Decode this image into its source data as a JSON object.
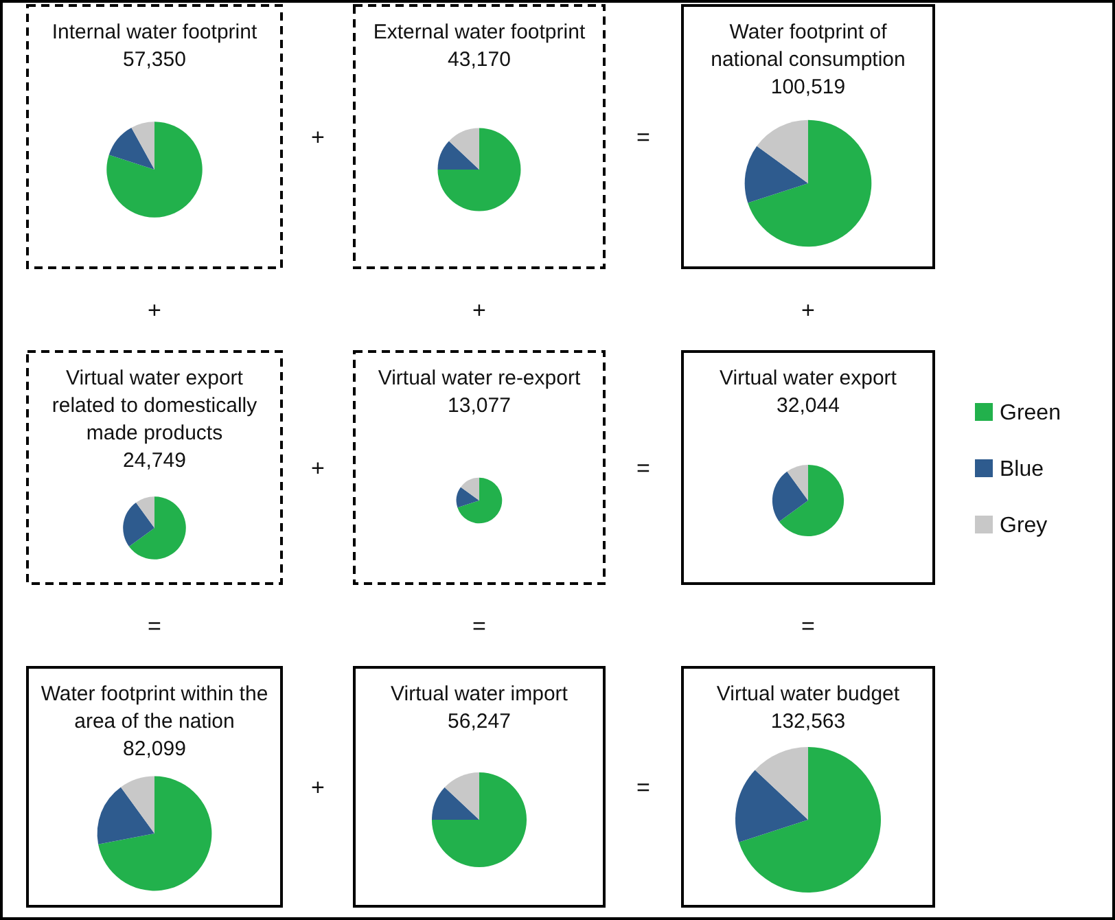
{
  "chart_data": [
    {
      "type": "pie",
      "title": "Internal water footprint",
      "subtitle": "57,350",
      "values": [
        80,
        12,
        8
      ],
      "colors": [
        "#22b14c",
        "#2e5b8e",
        "#c8c8c8"
      ]
    },
    {
      "type": "pie",
      "title": "External water footprint",
      "subtitle": "43,170",
      "values": [
        75,
        12,
        13
      ],
      "colors": [
        "#22b14c",
        "#2e5b8e",
        "#c8c8c8"
      ]
    },
    {
      "type": "pie",
      "title": "Water footprint of national consumption",
      "subtitle": "100,519",
      "values": [
        70,
        15,
        15
      ],
      "colors": [
        "#22b14c",
        "#2e5b8e",
        "#c8c8c8"
      ]
    },
    {
      "type": "pie",
      "title": "Virtual water export related to domestically made products",
      "subtitle": "24,749",
      "values": [
        65,
        25,
        10
      ],
      "colors": [
        "#22b14c",
        "#2e5b8e",
        "#c8c8c8"
      ]
    },
    {
      "type": "pie",
      "title": "Virtual water re-export",
      "subtitle": "13,077",
      "values": [
        70,
        15,
        15
      ],
      "colors": [
        "#22b14c",
        "#2e5b8e",
        "#c8c8c8"
      ]
    },
    {
      "type": "pie",
      "title": "Virtual water export",
      "subtitle": "32,044",
      "categories": [
        "Green",
        "Blue",
        "Grey"
      ],
      "values": [
        65,
        25,
        10
      ],
      "colors": [
        "#22b14c",
        "#2e5b8e",
        "#c8c8c8"
      ],
      "legend": "right"
    },
    {
      "type": "pie",
      "title": "Water footprint within the area of the nation",
      "subtitle": "82,099",
      "values": [
        72,
        18,
        10
      ],
      "colors": [
        "#22b14c",
        "#2e5b8e",
        "#c8c8c8"
      ]
    },
    {
      "type": "pie",
      "title": "Virtual water import",
      "subtitle": "56,247",
      "values": [
        75,
        12,
        13
      ],
      "colors": [
        "#22b14c",
        "#2e5b8e",
        "#c8c8c8"
      ]
    },
    {
      "type": "pie",
      "title": "Virtual water budget",
      "subtitle": "132,563",
      "values": [
        70,
        17,
        13
      ],
      "colors": [
        "#22b14c",
        "#2e5b8e",
        "#c8c8c8"
      ]
    },
    {
      "type": "other",
      "annotations": [
        "+",
        "=",
        "+",
        "+",
        "+",
        "+",
        "=",
        "=",
        "=",
        "=",
        "+",
        "="
      ]
    }
  ]
}
